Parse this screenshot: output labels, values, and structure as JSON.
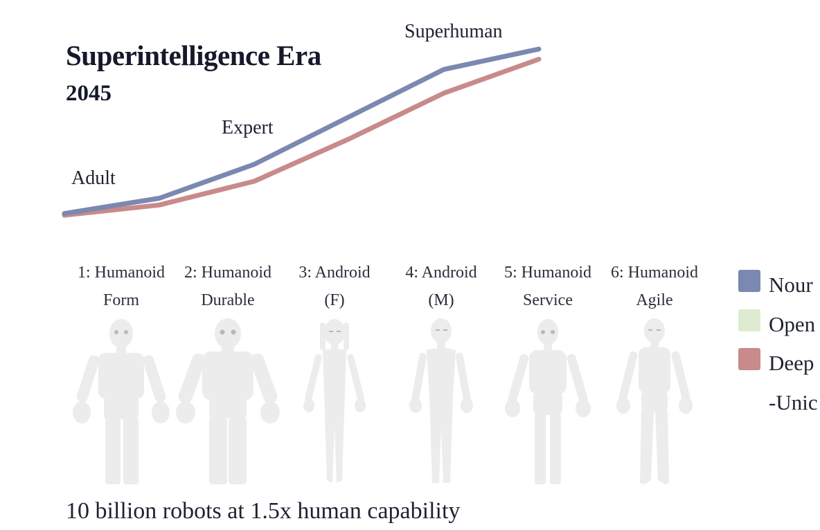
{
  "chart_data": {
    "type": "line",
    "title": "Superintelligence Era",
    "subtitle": "2045",
    "x": [
      0,
      1,
      2,
      3,
      4,
      5
    ],
    "ylim": [
      0,
      1
    ],
    "series": [
      {
        "color": "#7b88b0",
        "values": [
          0.01,
          0.1,
          0.3,
          0.58,
          0.86,
          0.98
        ]
      },
      {
        "color": "#c88a8a",
        "values": [
          0.0,
          0.06,
          0.2,
          0.45,
          0.72,
          0.92
        ]
      }
    ],
    "annotations": [
      {
        "text": "Adult",
        "x": 0
      },
      {
        "text": "Expert",
        "x": 2
      },
      {
        "text": "Superhuman",
        "x": 4
      }
    ]
  },
  "robots": [
    {
      "line1": "1: Humanoid",
      "line2": "Form",
      "icon": "humanoid-robot-icon"
    },
    {
      "line1": "2: Humanoid",
      "line2": "Durable",
      "icon": "humanoid-robot-icon"
    },
    {
      "line1": "3: Android",
      "line2": "(F)",
      "icon": "female-android-icon"
    },
    {
      "line1": "4: Android",
      "line2": "(M)",
      "icon": "male-android-icon"
    },
    {
      "line1": "5: Humanoid",
      "line2": "Service",
      "icon": "humanoid-robot-icon"
    },
    {
      "line1": "6: Humanoid",
      "line2": "Agile",
      "icon": "humanoid-robot-icon"
    }
  ],
  "legend": [
    {
      "label": "Nour",
      "color": "#7b88b0"
    },
    {
      "label": "Open",
      "color": "#deebd0"
    },
    {
      "label": "Deep",
      "color": "#c88a8a"
    },
    {
      "label": "-Unic",
      "color": null
    }
  ],
  "footer": "10 billion robots at 1.5x human capability"
}
